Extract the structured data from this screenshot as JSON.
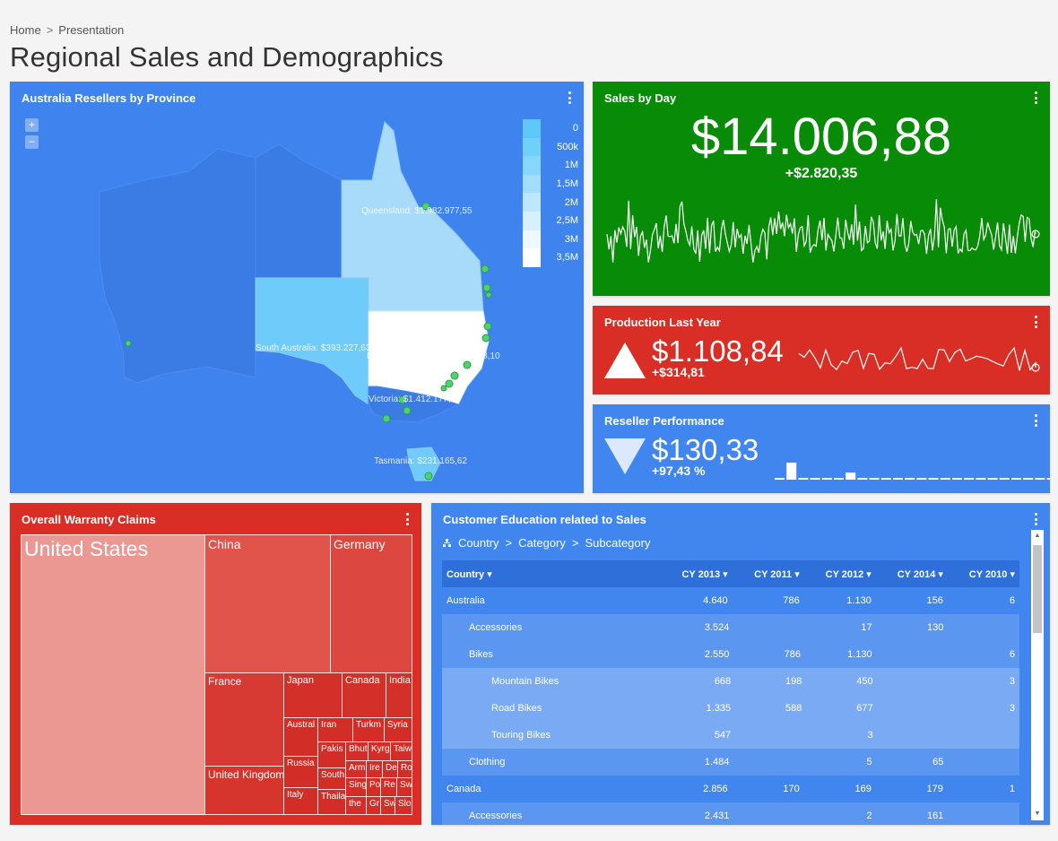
{
  "breadcrumb": {
    "home": "Home",
    "sep": ">",
    "current": "Presentation"
  },
  "page_title": "Regional Sales and Demographics",
  "map": {
    "title": "Australia Resellers by Province",
    "zoom_in": "+",
    "zoom_out": "−",
    "legend": [
      "0",
      "500k",
      "1M",
      "1,5M",
      "2M",
      "2,5M",
      "3M",
      "3,5M"
    ],
    "legend_colors": [
      "#5ec8f8",
      "#6fd0fa",
      "#86d7fb",
      "#a0defb",
      "#bce7fc",
      "#d6f0fd",
      "#eef8fe",
      "#ffffff"
    ],
    "labels": {
      "queensland": "Queensland: $1.982.977,55",
      "south_australia": "South Australia: $393.227,63",
      "new_south_wales": "New South Wales: $3.073.948,10",
      "victoria": "Victoria: $1.412.177,98",
      "tasmania": "Tasmania: $231.165,62"
    }
  },
  "sales_by_day": {
    "title": "Sales by Day",
    "value": "$14.006,88",
    "delta": "+$2.820,35"
  },
  "production": {
    "title": "Production Last Year",
    "value": "$1.108,84",
    "delta": "+$314,81"
  },
  "reseller": {
    "title": "Reseller Performance",
    "value": "$130,33",
    "delta": "+97,43 %"
  },
  "warranty": {
    "title": "Overall Warranty Claims",
    "countries": {
      "us": "United States",
      "china": "China",
      "germany": "Germany",
      "france": "France",
      "japan": "Japan",
      "canada": "Canada",
      "india": "India",
      "uk": "United Kingdom",
      "australia": "Austral",
      "iran": "Iran",
      "turkmen": "Turkm",
      "syria": "Syria",
      "russia": "Russia",
      "pakistan": "Pakis",
      "bhutan": "Bhut",
      "kyrg": "Kyrg",
      "taiwan": "Taiw",
      "south": "South",
      "arm": "Arm",
      "ire": "Ire",
      "de": "De",
      "ro": "Ro",
      "italy": "Italy",
      "thailand": "Thaila",
      "sing": "Sing",
      "po": "Po",
      "re": "Re",
      "sw": "Sw",
      "the": "the",
      "gr": "Gr",
      "sw2": "Sw",
      "slo": "Slo"
    }
  },
  "education": {
    "title": "Customer Education related to Sales",
    "path": [
      "Country",
      "Category",
      "Subcategory"
    ],
    "path_sep": ">",
    "columns": [
      "Country",
      "CY 2013",
      "CY 2011",
      "CY 2012",
      "CY 2014",
      "CY 2010"
    ],
    "rows": [
      {
        "level": 0,
        "cells": [
          "Australia",
          "4.640",
          "786",
          "1.130",
          "156",
          "6"
        ]
      },
      {
        "level": 1,
        "cells": [
          "Accessories",
          "3.524",
          "",
          "17",
          "130",
          ""
        ]
      },
      {
        "level": 1,
        "cells": [
          "Bikes",
          "2.550",
          "786",
          "1.130",
          "",
          "6"
        ]
      },
      {
        "level": 2,
        "cells": [
          "Mountain Bikes",
          "668",
          "198",
          "450",
          "",
          "3"
        ]
      },
      {
        "level": 2,
        "cells": [
          "Road Bikes",
          "1.335",
          "588",
          "677",
          "",
          "3"
        ]
      },
      {
        "level": 2,
        "cells": [
          "Touring Bikes",
          "547",
          "",
          "3",
          "",
          ""
        ]
      },
      {
        "level": 1,
        "cells": [
          "Clothing",
          "1.484",
          "",
          "5",
          "65",
          ""
        ]
      },
      {
        "level": 0,
        "cells": [
          "Canada",
          "2.856",
          "170",
          "169",
          "179",
          "1"
        ]
      },
      {
        "level": 1,
        "cells": [
          "Accessories",
          "2.431",
          "",
          "2",
          "161",
          ""
        ]
      }
    ]
  },
  "colors": {
    "blue": "#4185ee",
    "green": "#088c08",
    "red": "#d82e25"
  }
}
